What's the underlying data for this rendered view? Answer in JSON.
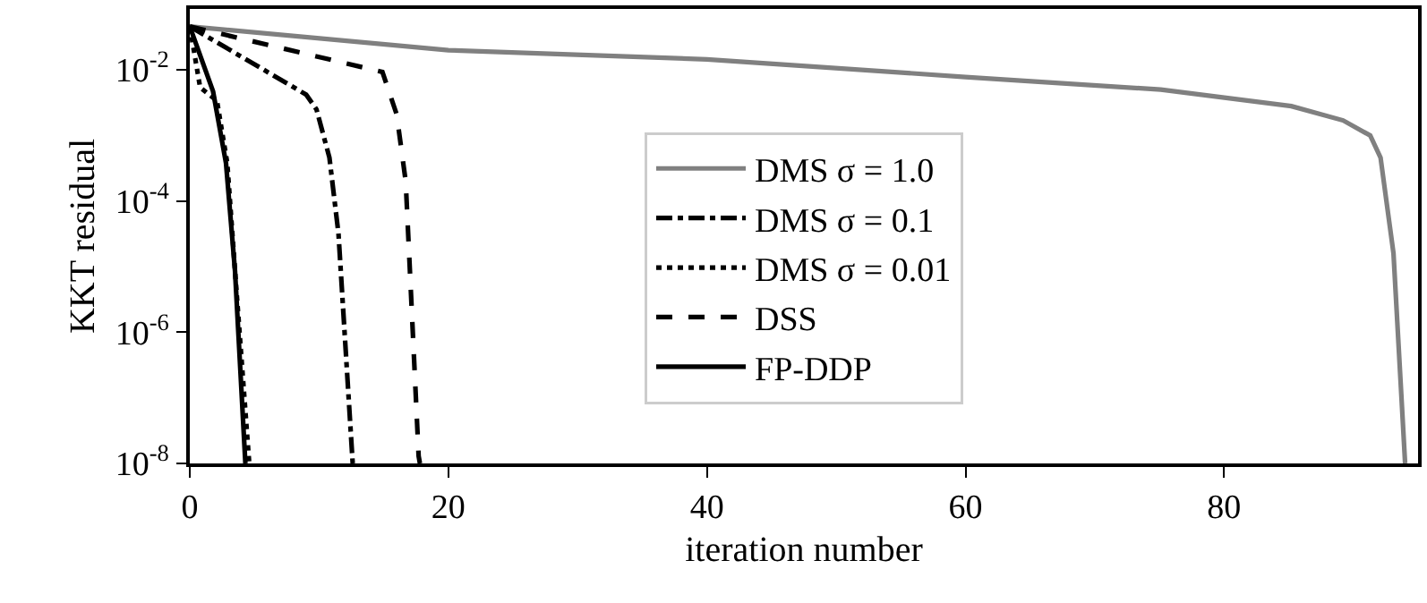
{
  "chart_data": {
    "type": "line",
    "xlabel": "iteration number",
    "ylabel": "KKT residual",
    "log": "y",
    "legend": "center",
    "marker": "none",
    "xlim": [
      0,
      95
    ],
    "xticks": [
      0,
      20,
      40,
      60,
      80
    ],
    "ylim": [
      1e-08,
      0.085
    ],
    "yticks": [
      {
        "value": 1e-08,
        "label": "10$^{-8}$"
      },
      {
        "value": 1e-06,
        "label": "10$^{-6}$"
      },
      {
        "value": 0.0001,
        "label": "10$^{-4}$"
      },
      {
        "value": 0.01,
        "label": "10$^{-2}$"
      }
    ],
    "series": [
      {
        "name": "DMS σ = 1.0",
        "color": "#808080",
        "line_style": "solid",
        "x": [
          0,
          20,
          40,
          60,
          75.1,
          85.2,
          89.2,
          91.3,
          92.1,
          93.1,
          94
        ],
        "values": [
          0.046,
          0.02,
          0.0145,
          0.0078,
          0.005,
          0.0028,
          0.0017,
          0.001,
          0.00046,
          1.6e-05,
          1e-08
        ]
      },
      {
        "name": "DMS σ = 0.1",
        "color": "#000000",
        "line_style": "dashdot",
        "x": [
          0,
          9.0,
          9.8,
          10.8,
          11.5,
          12.6
        ],
        "values": [
          0.046,
          0.0042,
          0.0025,
          0.00046,
          3.2e-05,
          1e-08
        ]
      },
      {
        "name": "DMS σ = 0.01",
        "color": "#000000",
        "line_style": "dotted",
        "x": [
          0,
          0.8,
          2.1,
          2.9,
          3.6,
          4.6
        ],
        "values": [
          0.046,
          0.0054,
          0.0034,
          0.00038,
          4.6e-06,
          1e-08
        ]
      },
      {
        "name": "DSS",
        "color": "#000000",
        "line_style": "dashed",
        "x": [
          0,
          14.9,
          16.0,
          16.7,
          17.7,
          17.8
        ],
        "values": [
          0.046,
          0.0093,
          0.0021,
          0.0002,
          1.3e-08,
          1e-08
        ]
      },
      {
        "name": "FP-DDP",
        "color": "#000000",
        "line_style": "solid",
        "x": [
          0,
          1.8,
          2.8,
          3.5,
          4.3
        ],
        "values": [
          0.046,
          0.0047,
          0.00038,
          8.5e-06,
          1e-08
        ]
      }
    ]
  }
}
